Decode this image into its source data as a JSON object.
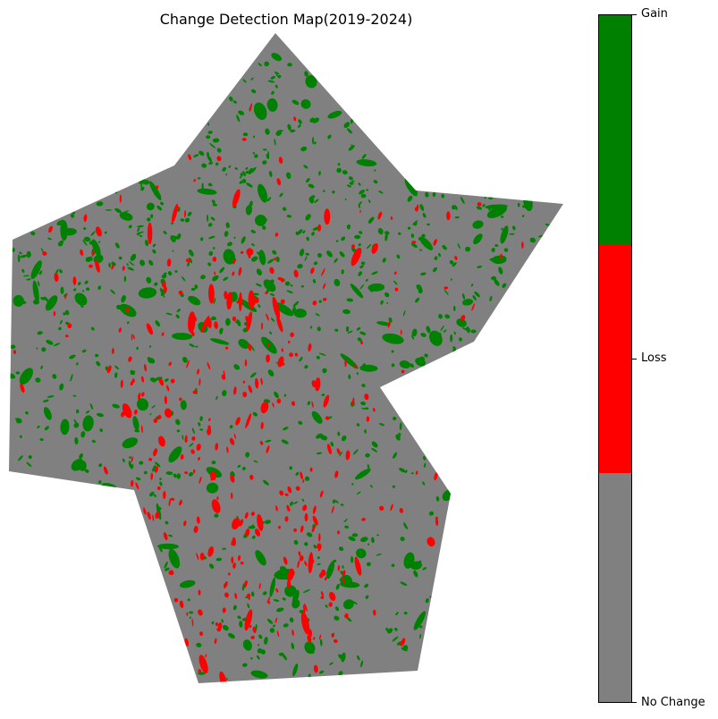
{
  "title": "Change Detection Map(2019-2024)",
  "chart_data": {
    "type": "heatmap",
    "title": "Change Detection Map(2019-2024)",
    "axes": "off",
    "grid": false,
    "legend": "colorbar-right",
    "classes": [
      {
        "label": "No Change",
        "color": "#808080"
      },
      {
        "label": "Loss",
        "color": "#ff0000"
      },
      {
        "label": "Gain",
        "color": "#008000"
      }
    ],
    "colorbar_ticks": [
      "Gain",
      "Loss",
      "No Change"
    ]
  },
  "colorbar": {
    "segments_top_to_bottom": [
      {
        "color": "#008000"
      },
      {
        "color": "#ff0000"
      },
      {
        "color": "#808080"
      }
    ],
    "labels": {
      "gain": "Gain",
      "loss": "Loss",
      "no_change": "No Change"
    }
  }
}
